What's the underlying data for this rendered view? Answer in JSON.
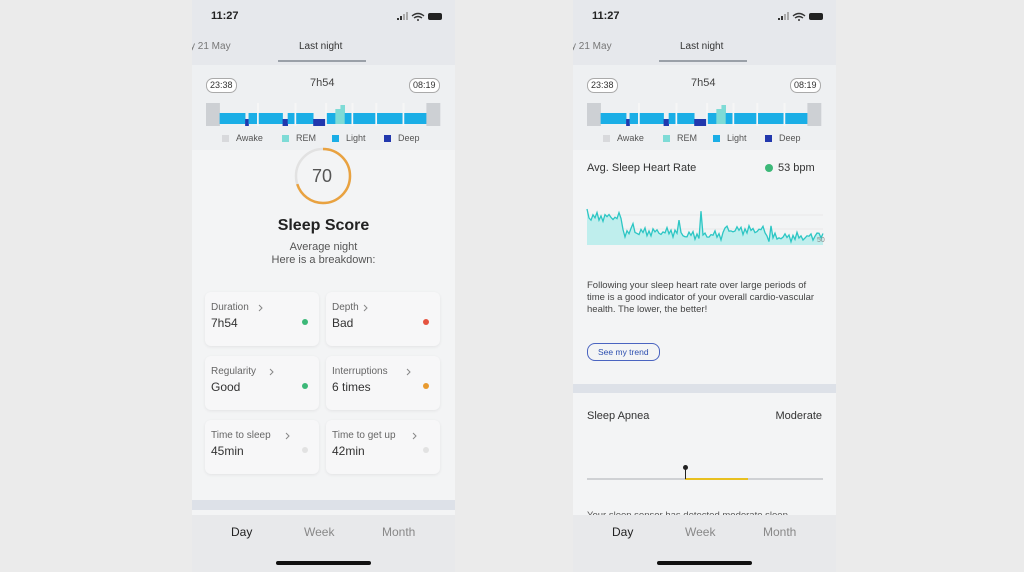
{
  "screens": [
    {
      "status_time": "11:27",
      "date_tabs": [
        "y 21 May",
        "Last night"
      ],
      "summary": {
        "start": "23:38",
        "duration": "7h54",
        "end": "08:19",
        "legend": [
          "Awake",
          "REM",
          "Light",
          "Deep"
        ]
      },
      "score": {
        "value": 70,
        "title": "Sleep Score",
        "subtitle": [
          "Average night",
          "Here is a breakdown:"
        ]
      },
      "cards": [
        {
          "label": "Duration",
          "value": "7h54"
        },
        {
          "label": "Depth",
          "value": "Bad"
        },
        {
          "label": "Regularity",
          "value": "Good"
        },
        {
          "label": "Interruptions",
          "value": "6 times"
        },
        {
          "label": "Time to sleep",
          "value": "45min"
        },
        {
          "label": "Time to get up",
          "value": "42min"
        }
      ],
      "tabs": [
        "Day",
        "Week",
        "Month"
      ]
    },
    {
      "status_time": "11:27",
      "date_tabs": [
        "y 21 May",
        "Last night"
      ],
      "summary": {
        "start": "23:38",
        "duration": "7h54",
        "end": "08:19",
        "legend": [
          "Awake",
          "REM",
          "Light",
          "Deep"
        ]
      },
      "heart_rate": {
        "title": "Avg. Sleep Heart Rate",
        "value": "53 bpm",
        "axis_label": "50",
        "description": "Following your sleep heart rate over large periods of time is a good indicator of your overall cardio-vascular health. The lower, the better!",
        "button": "See my trend"
      },
      "apnea": {
        "title": "Sleep Apnea",
        "level": "Moderate",
        "note": "Your sleep sensor has detected moderate sleep"
      },
      "tabs": [
        "Day",
        "Week",
        "Month"
      ]
    }
  ]
}
